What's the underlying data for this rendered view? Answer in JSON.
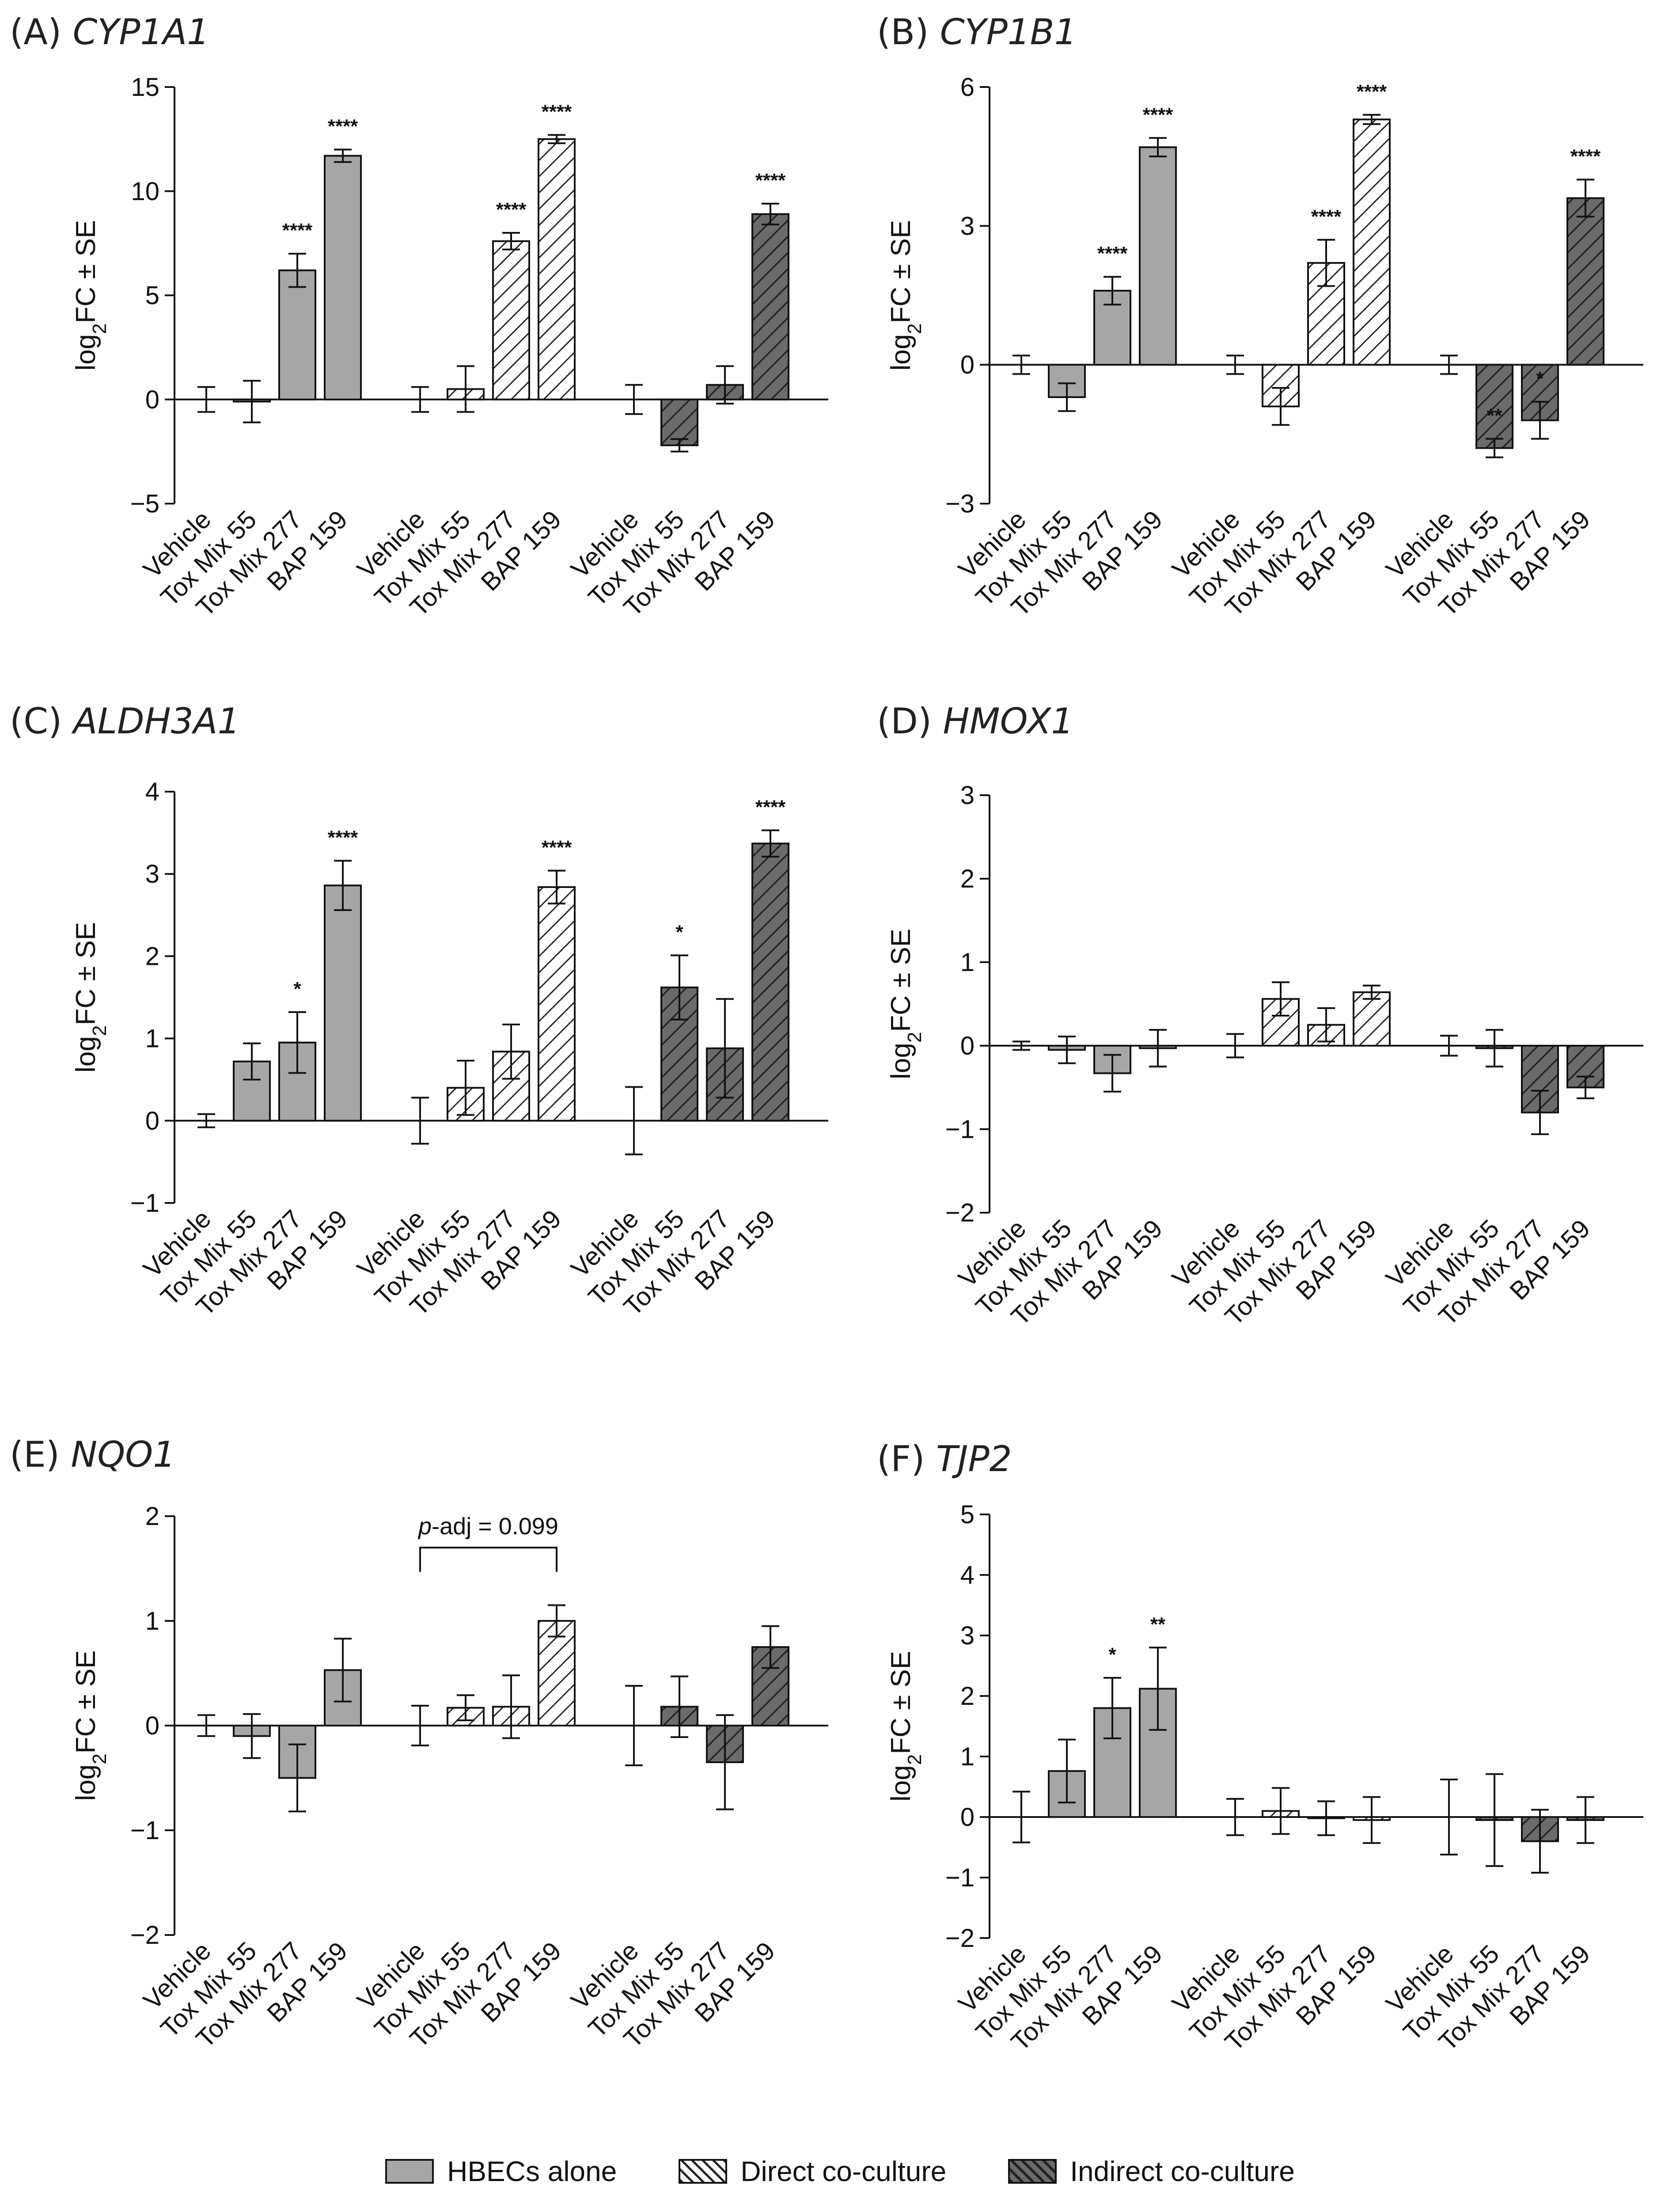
{
  "colors": {
    "hbec_fill": "#a6a6a6",
    "direct_fill": "#ffffff",
    "direct_hatch": "#222222",
    "indirect_fill": "#6b6b6b",
    "indirect_hatch": "#222222",
    "axis": "#111111"
  },
  "legend": {
    "items": [
      {
        "label": "HBECs alone",
        "style": "solid"
      },
      {
        "label": "Direct co-culture",
        "style": "hatch"
      },
      {
        "label": "Indirect co-culture",
        "style": "darkhatch"
      }
    ]
  },
  "chart_data": [
    {
      "type": "bar",
      "panel_label": "(A)",
      "gene": "CYP1A1",
      "ylabel": "log2FC ± SE",
      "ylim": [
        -5,
        15
      ],
      "yticks": [
        "-5",
        "0",
        "5",
        "10",
        "15"
      ],
      "yticks_values": [
        -5,
        0,
        5,
        10,
        15
      ],
      "categories": [
        "Vehicle",
        "Tox Mix 55",
        "Tox Mix 277",
        "BAP 159"
      ],
      "series": [
        {
          "name": "HBECs alone",
          "values": [
            0,
            -0.1,
            6.2,
            11.7
          ],
          "errors": [
            0.6,
            1.0,
            0.8,
            0.3
          ],
          "sig": [
            "",
            "",
            "****",
            "****"
          ]
        },
        {
          "name": "Direct co-culture",
          "values": [
            0,
            0.5,
            7.6,
            12.5
          ],
          "errors": [
            0.6,
            1.1,
            0.4,
            0.2
          ],
          "sig": [
            "",
            "",
            "****",
            "****"
          ]
        },
        {
          "name": "Indirect co-culture",
          "values": [
            0,
            -2.2,
            0.7,
            8.9
          ],
          "errors": [
            0.7,
            0.3,
            0.9,
            0.5
          ],
          "sig": [
            "",
            "",
            "",
            "****"
          ]
        }
      ]
    },
    {
      "type": "bar",
      "panel_label": "(B)",
      "gene": "CYP1B1",
      "ylabel": "log2FC ± SE",
      "ylim": [
        -3,
        6
      ],
      "yticks": [
        "-3",
        "0",
        "3",
        "6"
      ],
      "yticks_values": [
        -3,
        0,
        3,
        6
      ],
      "categories": [
        "Vehicle",
        "Tox Mix 55",
        "Tox Mix 277",
        "BAP 159"
      ],
      "series": [
        {
          "name": "HBECs alone",
          "values": [
            0,
            -0.7,
            1.6,
            4.7
          ],
          "errors": [
            0.2,
            0.3,
            0.3,
            0.2
          ],
          "sig": [
            "",
            "",
            "****",
            "****"
          ]
        },
        {
          "name": "Direct co-culture",
          "values": [
            0,
            -0.9,
            2.2,
            5.3
          ],
          "errors": [
            0.2,
            0.4,
            0.5,
            0.1
          ],
          "sig": [
            "",
            "",
            "****",
            "****"
          ]
        },
        {
          "name": "Indirect co-culture",
          "values": [
            0,
            -1.8,
            -1.2,
            3.6
          ],
          "errors": [
            0.2,
            0.2,
            0.4,
            0.4
          ],
          "sig": [
            "",
            "**",
            "*",
            "****"
          ]
        }
      ]
    },
    {
      "type": "bar",
      "panel_label": "(C)",
      "gene": "ALDH3A1",
      "ylabel": "log2FC ± SE",
      "ylim": [
        -1,
        4
      ],
      "yticks": [
        "-1",
        "0",
        "1",
        "2",
        "3",
        "4"
      ],
      "yticks_values": [
        -1,
        0,
        1,
        2,
        3,
        4
      ],
      "categories": [
        "Vehicle",
        "Tox Mix 55",
        "Tox Mix 277",
        "BAP 159"
      ],
      "series": [
        {
          "name": "HBECs alone",
          "values": [
            0,
            0.72,
            0.95,
            2.86
          ],
          "errors": [
            0.08,
            0.22,
            0.37,
            0.3
          ],
          "sig": [
            "",
            "",
            "*",
            "****"
          ]
        },
        {
          "name": "Direct co-culture",
          "values": [
            0,
            0.4,
            0.84,
            2.84
          ],
          "errors": [
            0.28,
            0.33,
            0.33,
            0.2
          ],
          "sig": [
            "",
            "",
            "",
            "****"
          ]
        },
        {
          "name": "Indirect co-culture",
          "values": [
            0,
            1.62,
            0.88,
            3.37
          ],
          "errors": [
            0.41,
            0.39,
            0.6,
            0.16
          ],
          "sig": [
            "",
            "*",
            "",
            "****"
          ]
        }
      ]
    },
    {
      "type": "bar",
      "panel_label": "(D)",
      "gene": "HMOX1",
      "ylabel": "log2FC ± SE",
      "ylim": [
        -2,
        3
      ],
      "yticks": [
        "-2",
        "-1",
        "0",
        "1",
        "2",
        "3"
      ],
      "yticks_values": [
        -2,
        -1,
        0,
        1,
        2,
        3
      ],
      "categories": [
        "Vehicle",
        "Tox Mix 55",
        "Tox Mix 277",
        "BAP 159"
      ],
      "series": [
        {
          "name": "HBECs alone",
          "values": [
            0,
            -0.05,
            -0.33,
            -0.03
          ],
          "errors": [
            0.05,
            0.16,
            0.22,
            0.22
          ],
          "sig": [
            "",
            "",
            "",
            ""
          ]
        },
        {
          "name": "Direct co-culture",
          "values": [
            0,
            0.56,
            0.25,
            0.64
          ],
          "errors": [
            0.14,
            0.2,
            0.2,
            0.08
          ],
          "sig": [
            "",
            "",
            "",
            ""
          ]
        },
        {
          "name": "Indirect co-culture",
          "values": [
            0,
            -0.03,
            -0.8,
            -0.5
          ],
          "errors": [
            0.12,
            0.22,
            0.26,
            0.13
          ],
          "sig": [
            "",
            "",
            "",
            ""
          ]
        }
      ]
    },
    {
      "type": "bar",
      "panel_label": "(E)",
      "gene": "NQO1",
      "ylabel": "log2FC ± SE",
      "ylim": [
        -2,
        2
      ],
      "yticks": [
        "-2",
        "-1",
        "0",
        "1",
        "2"
      ],
      "yticks_values": [
        -2,
        -1,
        0,
        1,
        2
      ],
      "categories": [
        "Vehicle",
        "Tox Mix 55",
        "Tox Mix 277",
        "BAP 159"
      ],
      "series": [
        {
          "name": "HBECs alone",
          "values": [
            0,
            -0.1,
            -0.5,
            0.53
          ],
          "errors": [
            0.1,
            0.21,
            0.32,
            0.3
          ],
          "sig": [
            "",
            "",
            "",
            ""
          ]
        },
        {
          "name": "Direct co-culture",
          "values": [
            0,
            0.17,
            0.18,
            1.0
          ],
          "errors": [
            0.19,
            0.12,
            0.3,
            0.15
          ],
          "sig": [
            "",
            "",
            "",
            ""
          ]
        },
        {
          "name": "Indirect co-culture",
          "values": [
            0,
            0.18,
            -0.35,
            0.75
          ],
          "errors": [
            0.38,
            0.29,
            0.45,
            0.2
          ],
          "sig": [
            "",
            "",
            "",
            ""
          ]
        }
      ],
      "bracket": {
        "prefix": "p",
        "text": "-adj = 0.099",
        "from_group": 1,
        "from_index": 0,
        "to_group": 1,
        "to_index": 3,
        "value": 1.7
      }
    },
    {
      "type": "bar",
      "panel_label": "(F)",
      "gene": "TJP2",
      "ylabel": "log2FC ± SE",
      "ylim": [
        -2,
        5
      ],
      "yticks": [
        "-2",
        "-1",
        "0",
        "1",
        "2",
        "3",
        "4",
        "5"
      ],
      "yticks_values": [
        -2,
        -1,
        0,
        1,
        2,
        3,
        4,
        5
      ],
      "categories": [
        "Vehicle",
        "Tox Mix 55",
        "Tox Mix 277",
        "BAP 159"
      ],
      "series": [
        {
          "name": "HBECs alone",
          "values": [
            0,
            0.76,
            1.8,
            2.12
          ],
          "errors": [
            0.42,
            0.52,
            0.5,
            0.68
          ],
          "sig": [
            "",
            "",
            "*",
            "**"
          ]
        },
        {
          "name": "Direct co-culture",
          "values": [
            0,
            0.1,
            -0.02,
            -0.05
          ],
          "errors": [
            0.3,
            0.38,
            0.28,
            0.38
          ],
          "sig": [
            "",
            "",
            "",
            ""
          ]
        },
        {
          "name": "Indirect co-culture",
          "values": [
            0,
            -0.05,
            -0.4,
            -0.05
          ],
          "errors": [
            0.62,
            0.76,
            0.52,
            0.38
          ],
          "sig": [
            "",
            "",
            "",
            ""
          ]
        }
      ]
    }
  ]
}
